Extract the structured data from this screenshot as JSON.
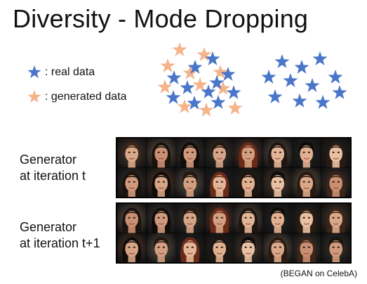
{
  "slide": {
    "title": "Diversity - Mode Dropping",
    "legend": {
      "real_label": ": real data",
      "generated_label": ": generated data"
    },
    "colors": {
      "real": "#4a76c9",
      "generated": "#f5b48a"
    },
    "row_labels": {
      "gen_t_line1": "Generator",
      "gen_t_line2": "at iteration t",
      "gen_t1_line1": "Generator",
      "gen_t1_line2": "at iteration t+1"
    },
    "caption": "(BEGAN on CelebA)"
  }
}
